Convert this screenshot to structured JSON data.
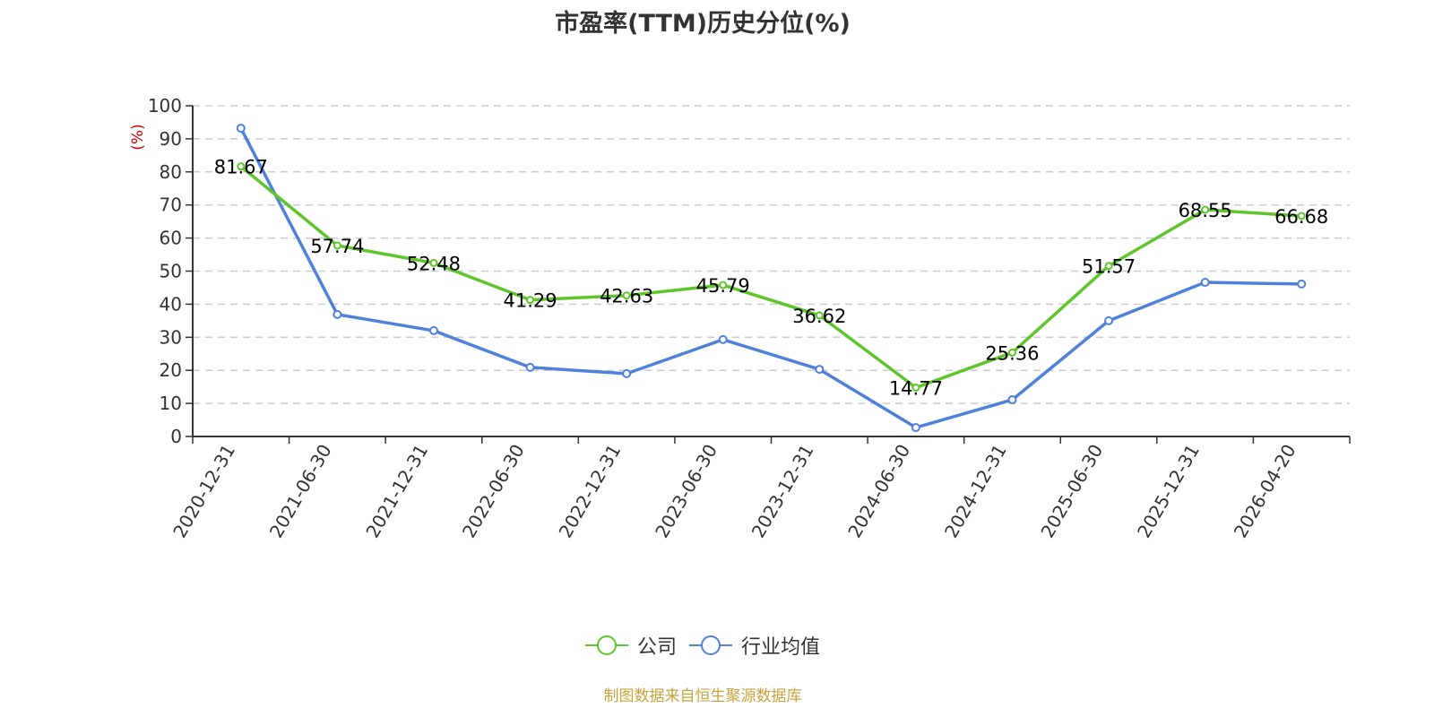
{
  "title": "市盈率(TTM)历史分位(%)",
  "source": "制图数据来自恒生聚源数据库",
  "colors": {
    "company": "#5ec52b",
    "industry": "#4f81db",
    "axis": "#333333",
    "grid": "#cccccc",
    "unit": "#cc0000",
    "source": "#c8a23a"
  },
  "legend": [
    {
      "label": "公司",
      "color": "#5ec52b"
    },
    {
      "label": "行业均值",
      "color": "#4f81db"
    }
  ],
  "chart_data": {
    "type": "line",
    "title": "市盈率(TTM)历史分位(%)",
    "xlabel": "",
    "ylabel": "(%)",
    "ylim": [
      0,
      100
    ],
    "yticks": [
      0,
      10,
      20,
      30,
      40,
      50,
      60,
      70,
      80,
      90,
      100
    ],
    "grid": true,
    "legend_position": "bottom",
    "categories": [
      "2020-12-31",
      "2021-06-30",
      "2021-12-31",
      "2022-06-30",
      "2022-12-31",
      "2023-06-30",
      "2023-12-31",
      "2024-06-30",
      "2024-12-31",
      "2025-06-30",
      "2025-12-31",
      "2026-04-20"
    ],
    "series": [
      {
        "name": "公司",
        "values": [
          81.67,
          57.74,
          52.48,
          41.29,
          42.63,
          45.79,
          36.62,
          14.77,
          25.36,
          51.57,
          68.55,
          66.68
        ],
        "labels_shown": true
      },
      {
        "name": "行业均值",
        "values": [
          93.2,
          36.9,
          32.0,
          20.9,
          19.0,
          29.3,
          20.3,
          2.7,
          11.1,
          35.0,
          46.6,
          46.1
        ],
        "labels_shown": false
      }
    ]
  }
}
